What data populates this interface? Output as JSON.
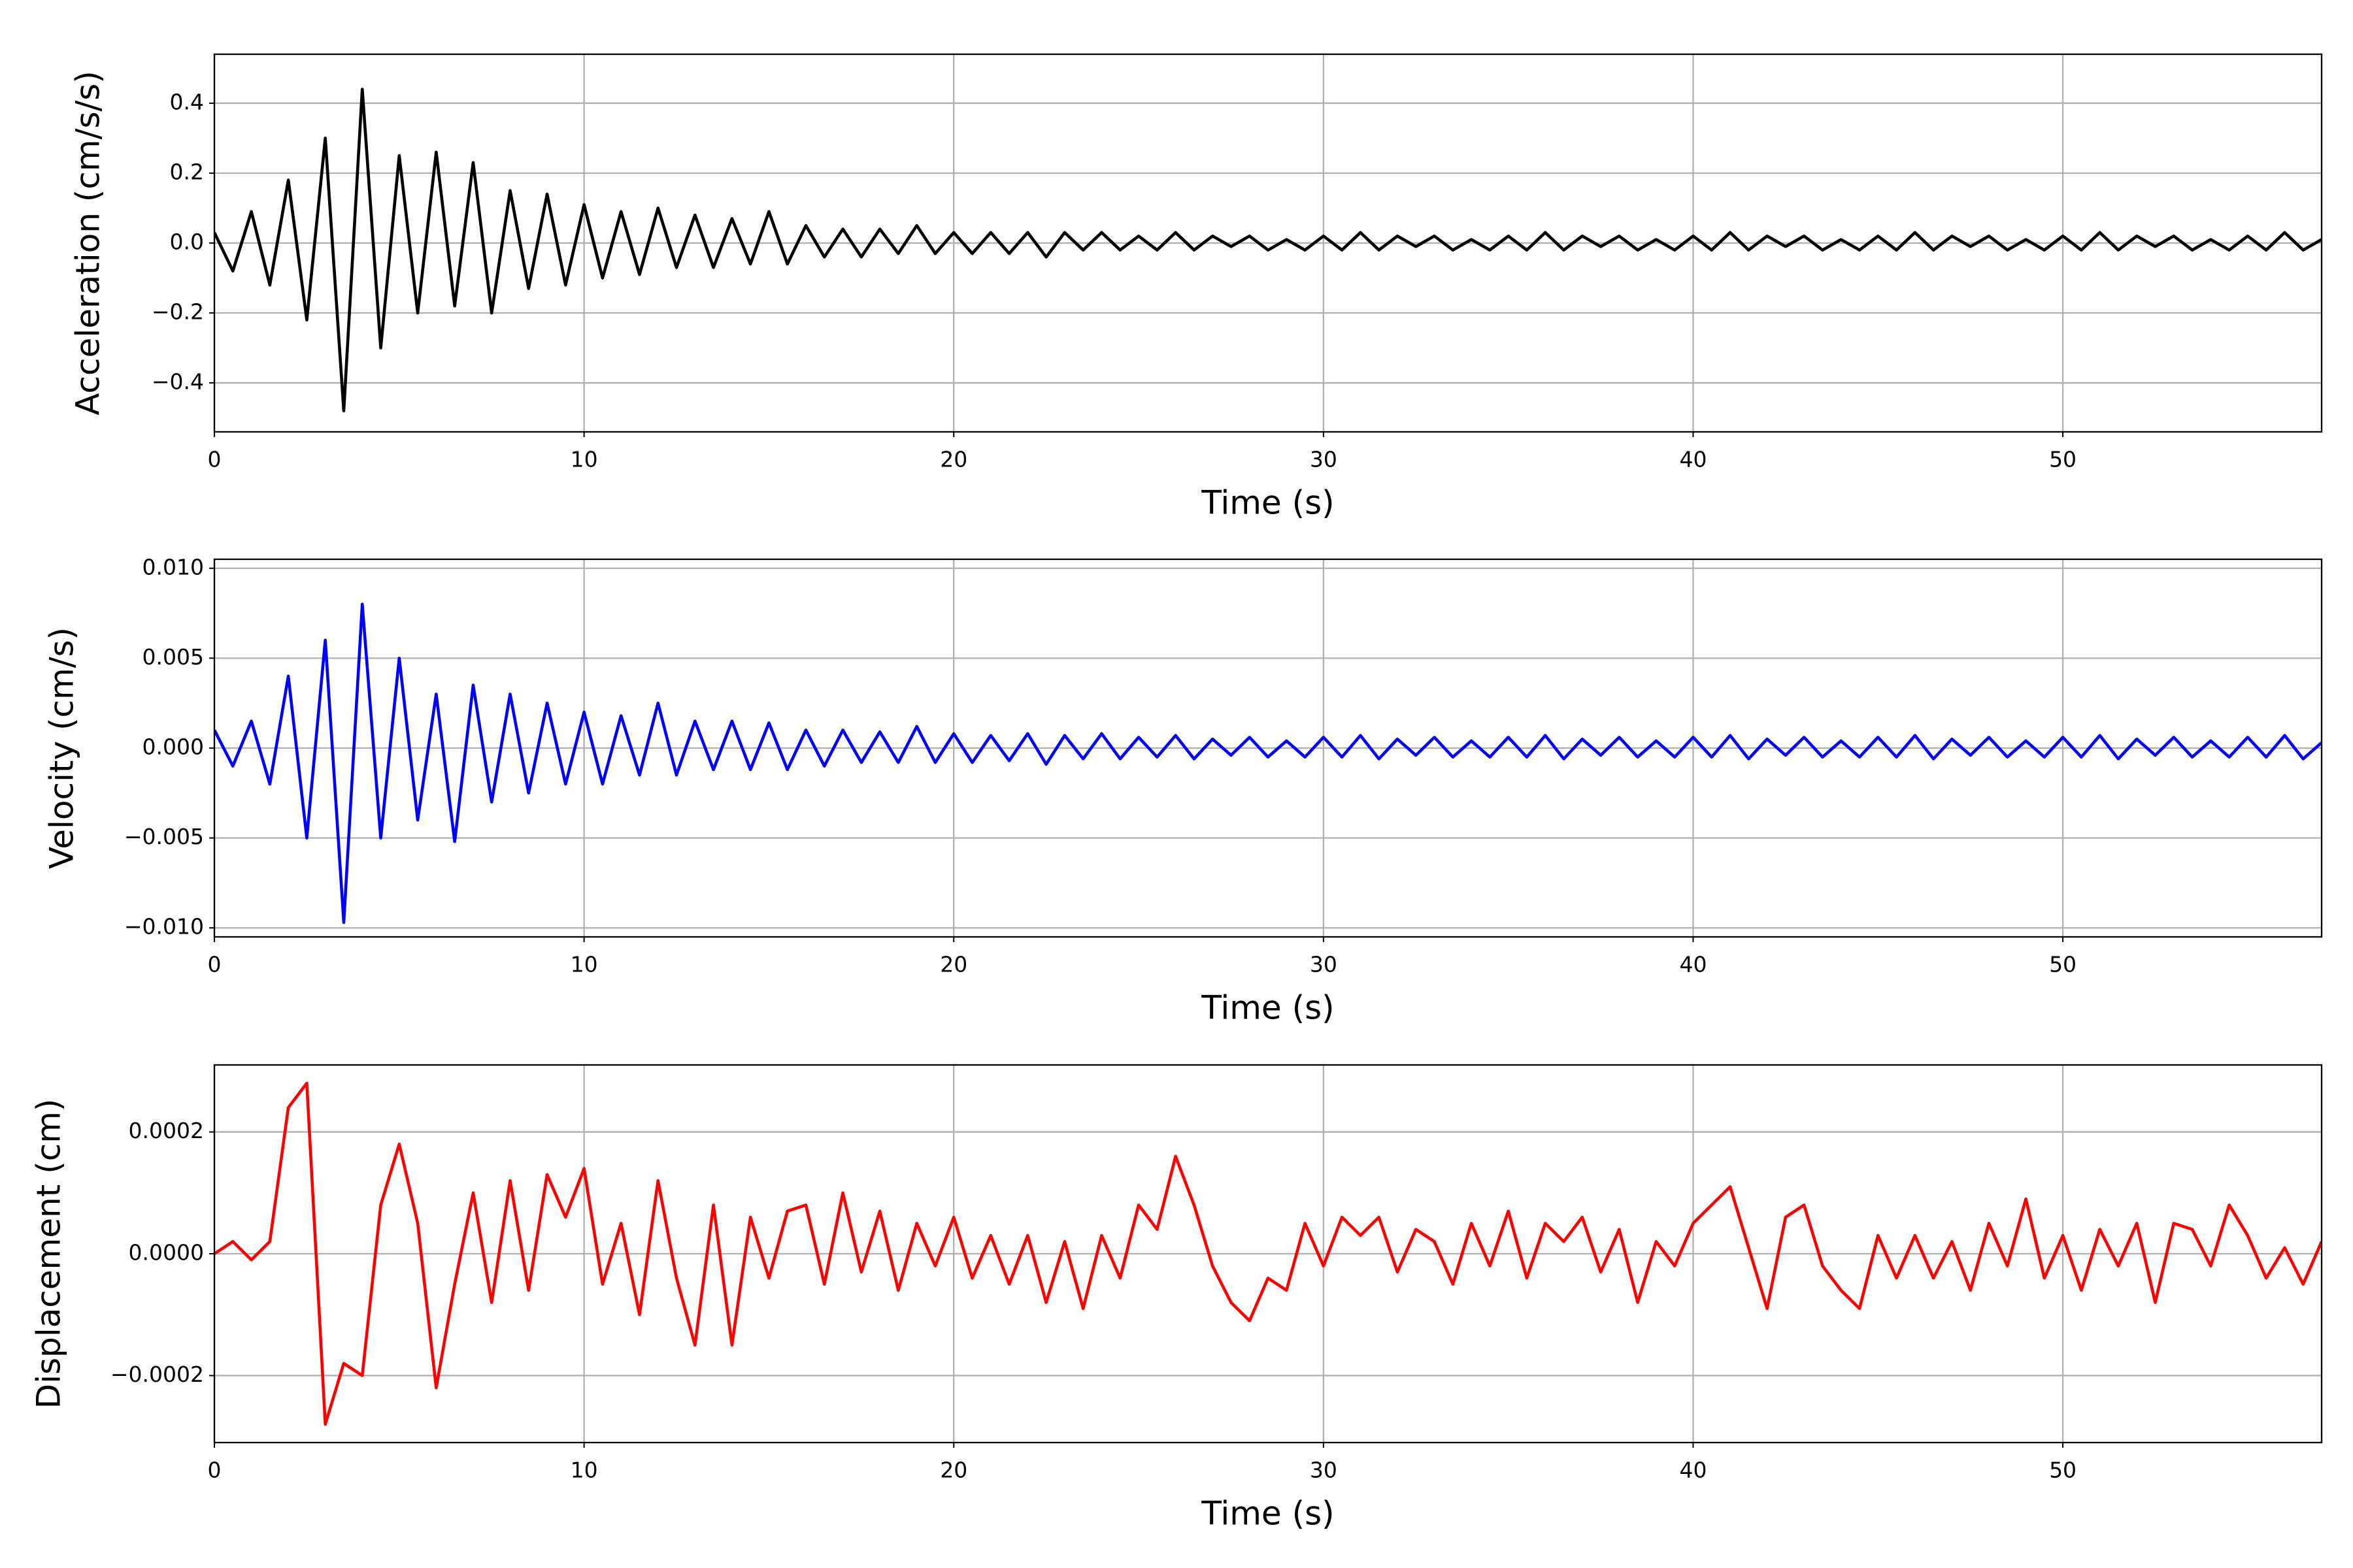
{
  "chart_data": [
    {
      "type": "line",
      "xlabel": "Time (s)",
      "ylabel": "Acceleration (cm/s/s)",
      "grid": true,
      "xlim": [
        0,
        57
      ],
      "xticks": [
        0,
        10,
        20,
        30,
        40,
        50
      ],
      "ylim": [
        -0.54,
        0.54
      ],
      "yticks": [
        {
          "value": -0.4,
          "label": "−0.4"
        },
        {
          "value": -0.2,
          "label": "−0.2"
        },
        {
          "value": 0,
          "label": "0.0"
        },
        0.2,
        0.4
      ],
      "x": [
        0,
        0.5,
        1,
        1.5,
        2,
        2.5,
        3,
        3.5,
        4,
        4.5,
        5,
        5.5,
        6,
        6.5,
        7,
        7.5,
        8,
        8.5,
        9,
        9.5,
        10,
        10.5,
        11,
        11.5,
        12,
        12.5,
        13,
        13.5,
        14,
        14.5,
        15,
        15.5,
        16,
        16.5,
        17,
        17.5,
        18,
        18.5,
        19,
        19.5,
        20,
        20.5,
        21,
        21.5,
        22,
        22.5,
        23,
        23.5,
        24,
        24.5,
        25,
        25.5,
        26,
        26.5,
        27,
        27.5,
        28,
        28.5,
        29,
        29.5,
        30,
        30.5,
        31,
        31.5,
        32,
        32.5,
        33,
        33.5,
        34,
        34.5,
        35,
        35.5,
        36,
        36.5,
        37,
        37.5,
        38,
        38.5,
        39,
        39.5,
        40,
        40.5,
        41,
        41.5,
        42,
        42.5,
        43,
        43.5,
        44,
        44.5,
        45,
        45.5,
        46,
        46.5,
        47,
        47.5,
        48,
        48.5,
        49,
        49.5,
        50,
        50.5,
        51,
        51.5,
        52,
        52.5,
        53,
        53.5,
        54,
        54.5,
        55,
        55.5,
        56,
        56.5,
        57
      ],
      "series": [
        {
          "color": "#000000",
          "values": [
            0.03,
            -0.08,
            0.09,
            -0.12,
            0.18,
            -0.22,
            0.3,
            -0.48,
            0.44,
            -0.3,
            0.25,
            -0.2,
            0.26,
            -0.18,
            0.23,
            -0.2,
            0.15,
            -0.13,
            0.14,
            -0.12,
            0.11,
            -0.1,
            0.09,
            -0.09,
            0.1,
            -0.07,
            0.08,
            -0.07,
            0.07,
            -0.06,
            0.09,
            -0.06,
            0.05,
            -0.04,
            0.04,
            -0.04,
            0.04,
            -0.03,
            0.05,
            -0.03,
            0.03,
            -0.03,
            0.03,
            -0.03,
            0.03,
            -0.04,
            0.03,
            -0.02,
            0.03,
            -0.02,
            0.02,
            -0.02,
            0.03,
            -0.02,
            0.02,
            -0.01,
            0.02,
            -0.02,
            0.01,
            -0.02,
            0.02,
            -0.02,
            0.03,
            -0.02,
            0.02,
            -0.01,
            0.02,
            -0.02,
            0.01,
            -0.02,
            0.02,
            -0.02,
            0.03,
            -0.02,
            0.02,
            -0.01,
            0.02,
            -0.02,
            0.01,
            -0.02,
            0.02,
            -0.02,
            0.03,
            -0.02,
            0.02,
            -0.01,
            0.02,
            -0.02,
            0.01,
            -0.02,
            0.02,
            -0.02,
            0.03,
            -0.02,
            0.02,
            -0.01,
            0.02,
            -0.02,
            0.01,
            -0.02,
            0.02,
            -0.02,
            0.03,
            -0.02,
            0.02,
            -0.01,
            0.02,
            -0.02,
            0.01,
            -0.02,
            0.02,
            -0.02,
            0.03,
            -0.02,
            0.01
          ]
        }
      ]
    },
    {
      "type": "line",
      "xlabel": "Time (s)",
      "ylabel": "Velocity (cm/s)",
      "grid": true,
      "xlim": [
        0,
        57
      ],
      "xticks": [
        0,
        10,
        20,
        30,
        40,
        50
      ],
      "ylim": [
        -0.0105,
        0.0105
      ],
      "yticks": [
        {
          "value": -0.01,
          "label": "−0.010"
        },
        {
          "value": -0.005,
          "label": "−0.005"
        },
        {
          "value": 0,
          "label": "0.000"
        },
        {
          "value": 0.005,
          "label": "0.005"
        },
        {
          "value": 0.01,
          "label": "0.010"
        }
      ],
      "x": [
        0,
        0.5,
        1,
        1.5,
        2,
        2.5,
        3,
        3.5,
        4,
        4.5,
        5,
        5.5,
        6,
        6.5,
        7,
        7.5,
        8,
        8.5,
        9,
        9.5,
        10,
        10.5,
        11,
        11.5,
        12,
        12.5,
        13,
        13.5,
        14,
        14.5,
        15,
        15.5,
        16,
        16.5,
        17,
        17.5,
        18,
        18.5,
        19,
        19.5,
        20,
        20.5,
        21,
        21.5,
        22,
        22.5,
        23,
        23.5,
        24,
        24.5,
        25,
        25.5,
        26,
        26.5,
        27,
        27.5,
        28,
        28.5,
        29,
        29.5,
        30,
        30.5,
        31,
        31.5,
        32,
        32.5,
        33,
        33.5,
        34,
        34.5,
        35,
        35.5,
        36,
        36.5,
        37,
        37.5,
        38,
        38.5,
        39,
        39.5,
        40,
        40.5,
        41,
        41.5,
        42,
        42.5,
        43,
        43.5,
        44,
        44.5,
        45,
        45.5,
        46,
        46.5,
        47,
        47.5,
        48,
        48.5,
        49,
        49.5,
        50,
        50.5,
        51,
        51.5,
        52,
        52.5,
        53,
        53.5,
        54,
        54.5,
        55,
        55.5,
        56,
        56.5,
        57
      ],
      "series": [
        {
          "color": "#0000ff",
          "values": [
            0.001,
            -0.001,
            0.0015,
            -0.002,
            0.004,
            -0.005,
            0.006,
            -0.0097,
            0.008,
            -0.005,
            0.005,
            -0.004,
            0.003,
            -0.0052,
            0.0035,
            -0.003,
            0.003,
            -0.0025,
            0.0025,
            -0.002,
            0.002,
            -0.002,
            0.0018,
            -0.0015,
            0.0025,
            -0.0015,
            0.0015,
            -0.0012,
            0.0015,
            -0.0012,
            0.0014,
            -0.0012,
            0.001,
            -0.001,
            0.001,
            -0.0008,
            0.0009,
            -0.0008,
            0.0012,
            -0.0008,
            0.0008,
            -0.0008,
            0.0007,
            -0.0007,
            0.0008,
            -0.0009,
            0.0007,
            -0.0006,
            0.0008,
            -0.0006,
            0.0006,
            -0.0005,
            0.0007,
            -0.0006,
            0.0005,
            -0.0004,
            0.0006,
            -0.0005,
            0.0004,
            -0.0005,
            0.0006,
            -0.0005,
            0.0007,
            -0.0006,
            0.0005,
            -0.0004,
            0.0006,
            -0.0005,
            0.0004,
            -0.0005,
            0.0006,
            -0.0005,
            0.0007,
            -0.0006,
            0.0005,
            -0.0004,
            0.0006,
            -0.0005,
            0.0004,
            -0.0005,
            0.0006,
            -0.0005,
            0.0007,
            -0.0006,
            0.0005,
            -0.0004,
            0.0006,
            -0.0005,
            0.0004,
            -0.0005,
            0.0006,
            -0.0005,
            0.0007,
            -0.0006,
            0.0005,
            -0.0004,
            0.0006,
            -0.0005,
            0.0004,
            -0.0005,
            0.0006,
            -0.0005,
            0.0007,
            -0.0006,
            0.0005,
            -0.0004,
            0.0006,
            -0.0005,
            0.0004,
            -0.0005,
            0.0006,
            -0.0005,
            0.0007,
            -0.0006,
            0.0003
          ]
        }
      ]
    },
    {
      "type": "line",
      "xlabel": "Time (s)",
      "ylabel": "Displacement (cm)",
      "grid": true,
      "xlim": [
        0,
        57
      ],
      "xticks": [
        0,
        10,
        20,
        30,
        40,
        50
      ],
      "ylim": [
        -0.00031,
        0.00031
      ],
      "yticks": [
        {
          "value": -0.0002,
          "label": "−0.0002"
        },
        {
          "value": 0,
          "label": "0.0000"
        },
        {
          "value": 0.0002,
          "label": "0.0002"
        }
      ],
      "x": [
        0,
        0.5,
        1,
        1.5,
        2,
        2.5,
        3,
        3.5,
        4,
        4.5,
        5,
        5.5,
        6,
        6.5,
        7,
        7.5,
        8,
        8.5,
        9,
        9.5,
        10,
        10.5,
        11,
        11.5,
        12,
        12.5,
        13,
        13.5,
        14,
        14.5,
        15,
        15.5,
        16,
        16.5,
        17,
        17.5,
        18,
        18.5,
        19,
        19.5,
        20,
        20.5,
        21,
        21.5,
        22,
        22.5,
        23,
        23.5,
        24,
        24.5,
        25,
        25.5,
        26,
        26.5,
        27,
        27.5,
        28,
        28.5,
        29,
        29.5,
        30,
        30.5,
        31,
        31.5,
        32,
        32.5,
        33,
        33.5,
        34,
        34.5,
        35,
        35.5,
        36,
        36.5,
        37,
        37.5,
        38,
        38.5,
        39,
        39.5,
        40,
        40.5,
        41,
        41.5,
        42,
        42.5,
        43,
        43.5,
        44,
        44.5,
        45,
        45.5,
        46,
        46.5,
        47,
        47.5,
        48,
        48.5,
        49,
        49.5,
        50,
        50.5,
        51,
        51.5,
        52,
        52.5,
        53,
        53.5,
        54,
        54.5,
        55,
        55.5,
        56,
        56.5,
        57
      ],
      "series": [
        {
          "color": "#ff0000",
          "values": [
            0,
            2e-05,
            -1e-05,
            2e-05,
            0.00024,
            0.00028,
            -0.00028,
            -0.00018,
            -0.0002,
            8e-05,
            0.00018,
            5e-05,
            -0.00022,
            -5e-05,
            0.0001,
            -8e-05,
            0.00012,
            -6e-05,
            0.00013,
            6e-05,
            0.00014,
            -5e-05,
            5e-05,
            -0.0001,
            0.00012,
            -4e-05,
            -0.00015,
            8e-05,
            -0.00015,
            6e-05,
            -4e-05,
            7e-05,
            8e-05,
            -5e-05,
            0.0001,
            -3e-05,
            7e-05,
            -6e-05,
            5e-05,
            -2e-05,
            6e-05,
            -4e-05,
            3e-05,
            -5e-05,
            3e-05,
            -8e-05,
            2e-05,
            -9e-05,
            3e-05,
            -4e-05,
            8e-05,
            4e-05,
            0.00016,
            8e-05,
            -2e-05,
            -8e-05,
            -0.00011,
            -4e-05,
            -6e-05,
            5e-05,
            -2e-05,
            6e-05,
            3e-05,
            6e-05,
            -3e-05,
            4e-05,
            2e-05,
            -5e-05,
            5e-05,
            -2e-05,
            7e-05,
            -4e-05,
            5e-05,
            2e-05,
            6e-05,
            -3e-05,
            4e-05,
            -8e-05,
            2e-05,
            -2e-05,
            5e-05,
            8e-05,
            0.00011,
            1e-05,
            -9e-05,
            6e-05,
            8e-05,
            -2e-05,
            -6e-05,
            -9e-05,
            3e-05,
            -4e-05,
            3e-05,
            -4e-05,
            2e-05,
            -6e-05,
            5e-05,
            -2e-05,
            9e-05,
            -4e-05,
            3e-05,
            -6e-05,
            4e-05,
            -2e-05,
            5e-05,
            -8e-05,
            5e-05,
            4e-05,
            -2e-05,
            8e-05,
            3e-05,
            -4e-05,
            1e-05,
            -5e-05,
            2e-05
          ]
        }
      ]
    }
  ]
}
